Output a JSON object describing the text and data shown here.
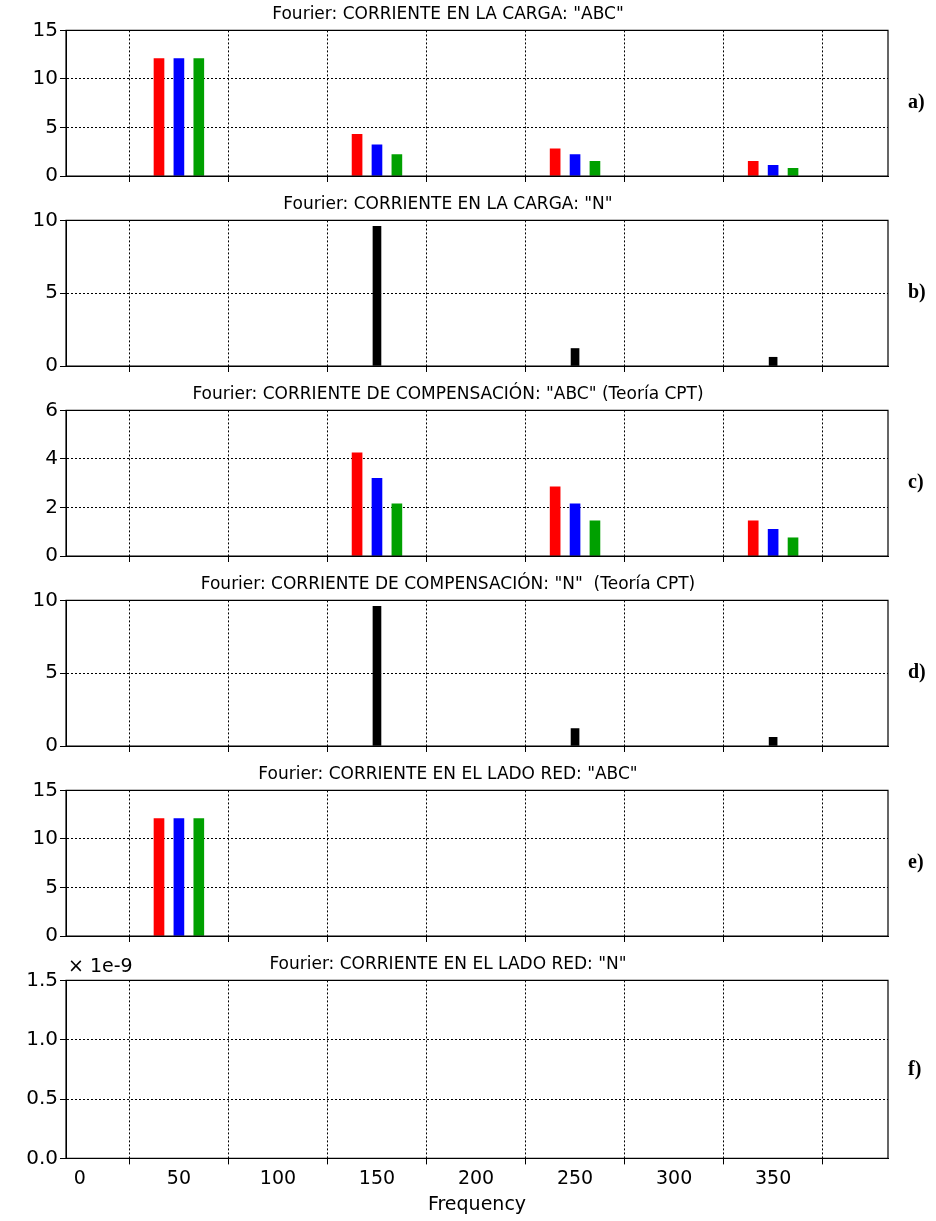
{
  "chart_data": [
    {
      "type": "bar",
      "title": "Fourier: CORRIENTE EN LA CARGA: \"ABC\"",
      "annotations": [
        "a)"
      ],
      "xlim": [
        -7,
        408
      ],
      "xticks": [
        0,
        50,
        100,
        150,
        200,
        250,
        300,
        350
      ],
      "ylim": [
        0,
        15
      ],
      "yticks": [
        0,
        5,
        10,
        15
      ],
      "grid": true,
      "legend": false,
      "tick_labels": "y",
      "series": [
        {
          "color": "#ff0000",
          "x": [
            45,
            145,
            245,
            345
          ],
          "values": [
            12.1,
            4.3,
            2.8,
            1.5
          ]
        },
        {
          "color": "#0000ff",
          "x": [
            50,
            150,
            250,
            350
          ],
          "values": [
            12.1,
            3.2,
            2.2,
            1.1
          ]
        },
        {
          "color": "#00a000",
          "x": [
            55,
            155,
            255,
            355
          ],
          "values": [
            12.1,
            2.2,
            1.5,
            0.8
          ]
        }
      ]
    },
    {
      "type": "bar",
      "title": "Fourier: CORRIENTE EN LA CARGA: \"N\"",
      "annotations": [
        "b)"
      ],
      "xlim": [
        -7,
        408
      ],
      "xticks": [
        0,
        50,
        100,
        150,
        200,
        250,
        300,
        350
      ],
      "ylim": [
        0,
        10
      ],
      "yticks": [
        0,
        5,
        10
      ],
      "grid": true,
      "legend": false,
      "tick_labels": "y",
      "series": [
        {
          "color": "#000000",
          "x": [
            150,
            250,
            350
          ],
          "values": [
            9.6,
            1.2,
            0.6
          ]
        }
      ]
    },
    {
      "type": "bar",
      "title": "Fourier: CORRIENTE DE COMPENSACIÓN: \"ABC\" (Teoría CPT)",
      "annotations": [
        "c)"
      ],
      "xlim": [
        -7,
        408
      ],
      "xticks": [
        0,
        50,
        100,
        150,
        200,
        250,
        300,
        350
      ],
      "ylim": [
        0,
        6
      ],
      "yticks": [
        0,
        2,
        4,
        6
      ],
      "grid": true,
      "legend": false,
      "tick_labels": "y",
      "series": [
        {
          "color": "#ff0000",
          "x": [
            145,
            245,
            345
          ],
          "values": [
            4.25,
            2.85,
            1.45
          ]
        },
        {
          "color": "#0000ff",
          "x": [
            150,
            250,
            350
          ],
          "values": [
            3.2,
            2.15,
            1.1
          ]
        },
        {
          "color": "#00a000",
          "x": [
            155,
            255,
            355
          ],
          "values": [
            2.15,
            1.45,
            0.75
          ]
        }
      ]
    },
    {
      "type": "bar",
      "title": "Fourier: CORRIENTE DE COMPENSACIÓN: \"N\"  (Teoría CPT)",
      "annotations": [
        "d)"
      ],
      "xlim": [
        -7,
        408
      ],
      "xticks": [
        0,
        50,
        100,
        150,
        200,
        250,
        300,
        350
      ],
      "ylim": [
        0,
        10
      ],
      "yticks": [
        0,
        5,
        10
      ],
      "grid": true,
      "legend": false,
      "tick_labels": "y",
      "series": [
        {
          "color": "#000000",
          "x": [
            150,
            250,
            350
          ],
          "values": [
            9.6,
            1.2,
            0.6
          ]
        }
      ]
    },
    {
      "type": "bar",
      "title": "Fourier: CORRIENTE EN EL LADO RED: \"ABC\"",
      "annotations": [
        "e)"
      ],
      "xlim": [
        -7,
        408
      ],
      "xticks": [
        0,
        50,
        100,
        150,
        200,
        250,
        300,
        350
      ],
      "ylim": [
        0,
        15
      ],
      "yticks": [
        0,
        5,
        10,
        15
      ],
      "grid": true,
      "legend": false,
      "tick_labels": "y",
      "series": [
        {
          "color": "#ff0000",
          "x": [
            45
          ],
          "values": [
            12.1
          ]
        },
        {
          "color": "#0000ff",
          "x": [
            50
          ],
          "values": [
            12.1
          ]
        },
        {
          "color": "#00a000",
          "x": [
            55
          ],
          "values": [
            12.1
          ]
        }
      ]
    },
    {
      "type": "bar",
      "title": "Fourier: CORRIENTE EN EL LADO RED: \"N\"",
      "xlabel": "Frequency",
      "annotations": [
        "× 1e-9",
        "f)"
      ],
      "xlim": [
        -7,
        408
      ],
      "xticks": [
        0,
        50,
        100,
        150,
        200,
        250,
        300,
        350
      ],
      "ylim": [
        0,
        1.5
      ],
      "yticks": [
        {
          "value": 0,
          "label": "0.0"
        },
        0.5,
        {
          "value": 1,
          "label": "1.0"
        },
        1.5
      ],
      "grid": true,
      "legend": false
    }
  ]
}
